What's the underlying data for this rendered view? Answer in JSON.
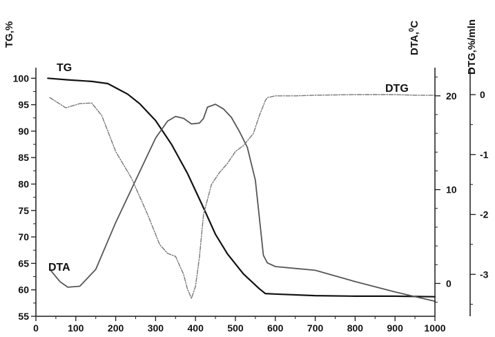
{
  "chart_data": {
    "type": "line",
    "background": "#ffffff",
    "axis_color": "#1a1a1a",
    "axes": {
      "x": {
        "range": [
          0,
          1000
        ],
        "ticks": [
          0,
          100,
          200,
          300,
          400,
          500,
          600,
          700,
          800,
          900,
          1000
        ],
        "tick_labels": [
          "0",
          "100",
          "200",
          "300",
          "400",
          "500",
          "600",
          "700",
          "800",
          "900",
          "1000"
        ]
      },
      "tg": {
        "title": "TG,%",
        "range": [
          55,
          102
        ],
        "ticks": [
          55,
          60,
          65,
          70,
          75,
          80,
          85,
          90,
          95,
          100
        ],
        "tick_labels": [
          "55",
          "60",
          "65",
          "70",
          "75",
          "80",
          "85",
          "90",
          "95",
          "100"
        ],
        "position": "left"
      },
      "dta": {
        "title": "DTA,",
        "title_sup": "0",
        "title_unit": "C",
        "range": [
          -3.5,
          23
        ],
        "ticks": [
          0,
          10,
          20
        ],
        "tick_labels": [
          "0",
          "10",
          "20"
        ],
        "position": "right"
      },
      "dtg": {
        "title": "DTG,%/mln",
        "range": [
          -3.7,
          0.45
        ],
        "ticks": [
          -3,
          -2,
          -1,
          0
        ],
        "tick_labels": [
          "-3",
          "-2",
          "-1",
          "0"
        ],
        "position": "far-right"
      }
    },
    "grid": false,
    "series": [
      {
        "name": "TG",
        "axis": "tg",
        "color": "#111111",
        "width": 2.2,
        "dash": "",
        "label_at": [
          82,
          103
        ],
        "x": [
          30,
          80,
          140,
          180,
          200,
          230,
          260,
          300,
          340,
          380,
          420,
          450,
          480,
          520,
          560,
          575,
          600,
          700,
          800,
          900,
          1000
        ],
        "y": [
          100,
          99.7,
          99.4,
          99.0,
          98.2,
          97.0,
          95.2,
          92.0,
          87.5,
          82.0,
          75.5,
          70.5,
          66.8,
          63.0,
          60.2,
          59.3,
          59.2,
          58.9,
          58.8,
          58.8,
          58.7
        ]
      },
      {
        "name": "DTA",
        "axis": "dta",
        "color": "#555555",
        "width": 1.8,
        "dash": "",
        "label_at": [
          70,
          392
        ],
        "x": [
          35,
          60,
          80,
          110,
          150,
          200,
          250,
          300,
          330,
          350,
          370,
          390,
          410,
          420,
          430,
          450,
          470,
          490,
          510,
          530,
          550,
          560,
          570,
          580,
          600,
          650,
          700,
          800,
          900,
          1000
        ],
        "y": [
          1.5,
          0.2,
          -0.4,
          -0.3,
          1.5,
          6.5,
          11,
          15.5,
          17.3,
          17.8,
          17.6,
          17.0,
          17.1,
          17.6,
          18.8,
          19.1,
          18.6,
          17.7,
          16.2,
          14.5,
          11,
          7,
          3,
          2.2,
          1.8,
          1.6,
          1.4,
          0.2,
          -0.9,
          -1.9
        ]
      },
      {
        "name": "DTG",
        "axis": "dtg",
        "color": "#777777",
        "width": 1.4,
        "dash": "6,2,1.5,2",
        "label_at": [
          558,
          133
        ],
        "x": [
          35,
          75,
          110,
          140,
          165,
          200,
          240,
          280,
          310,
          330,
          350,
          370,
          380,
          390,
          400,
          410,
          420,
          440,
          460,
          480,
          500,
          520,
          545,
          560,
          575,
          580,
          600,
          650,
          700,
          800,
          900,
          950,
          1000
        ],
        "y": [
          -0.05,
          -0.22,
          -0.15,
          -0.14,
          -0.35,
          -0.95,
          -1.4,
          -2.0,
          -2.5,
          -2.65,
          -2.7,
          -3.0,
          -3.25,
          -3.4,
          -3.2,
          -2.7,
          -2.0,
          -1.5,
          -1.3,
          -1.15,
          -0.95,
          -0.85,
          -0.65,
          -0.35,
          -0.1,
          -0.05,
          -0.02,
          -0.02,
          -0.01,
          0.0,
          0.0,
          -0.01,
          -0.01
        ]
      }
    ]
  }
}
